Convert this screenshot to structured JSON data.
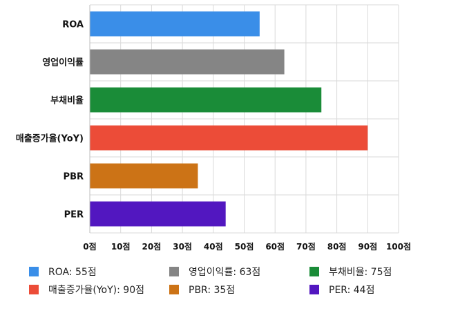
{
  "chart_data": {
    "type": "bar",
    "orientation": "horizontal",
    "categories": [
      "ROA",
      "영업이익률",
      "부채비율",
      "매출증가율(YoY)",
      "PBR",
      "PER"
    ],
    "values": [
      55,
      63,
      75,
      90,
      35,
      44
    ],
    "colors": [
      "#3a8ee8",
      "#858585",
      "#1a8c38",
      "#ec4c38",
      "#cc7316",
      "#5217c0"
    ],
    "xlim": [
      0,
      100
    ],
    "xticks": [
      0,
      10,
      20,
      30,
      40,
      50,
      60,
      70,
      80,
      90,
      100
    ],
    "tick_labels": [
      "0점",
      "10점",
      "20점",
      "30점",
      "40점",
      "50점",
      "60점",
      "70점",
      "80점",
      "90점",
      "100점"
    ],
    "grid": true,
    "legend_position": "bottom",
    "legend": [
      {
        "label": "ROA: 55점",
        "color": "#3a8ee8"
      },
      {
        "label": "영업이익률: 63점",
        "color": "#858585"
      },
      {
        "label": "부채비율: 75점",
        "color": "#1a8c38"
      },
      {
        "label": "매출증가율(YoY): 90점",
        "color": "#ec4c38"
      },
      {
        "label": "PBR: 35점",
        "color": "#cc7316"
      },
      {
        "label": "PER: 44점",
        "color": "#5217c0"
      }
    ]
  }
}
